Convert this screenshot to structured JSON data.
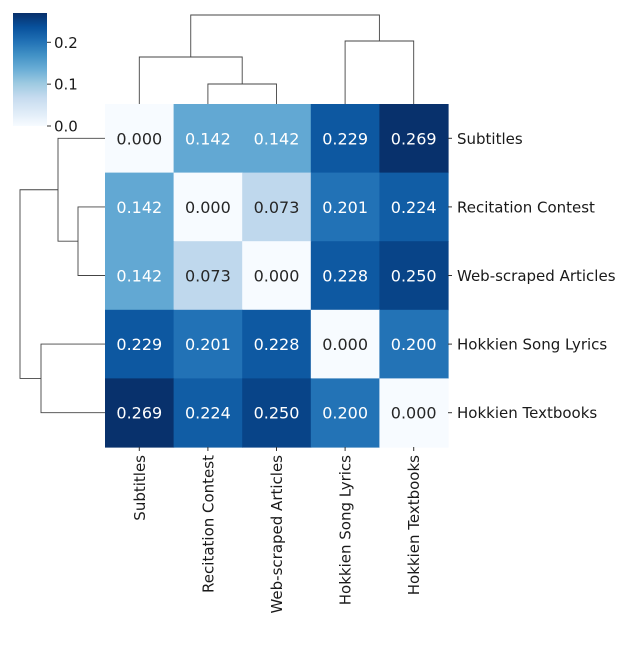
{
  "chart_data": {
    "type": "heatmap",
    "title": "",
    "categories": [
      "Subtitles",
      "Recitation Contest",
      "Web-scraped Articles",
      "Hokkien Song Lyrics",
      "Hokkien Textbooks"
    ],
    "values": [
      [
        0.0,
        0.142,
        0.142,
        0.229,
        0.269
      ],
      [
        0.142,
        0.0,
        0.073,
        0.201,
        0.224
      ],
      [
        0.142,
        0.073,
        0.0,
        0.228,
        0.25
      ],
      [
        0.229,
        0.201,
        0.228,
        0.0,
        0.2
      ],
      [
        0.269,
        0.224,
        0.25,
        0.2,
        0.0
      ]
    ],
    "cell_labels": [
      [
        "0.000",
        "0.142",
        "0.142",
        "0.229",
        "0.269"
      ],
      [
        "0.142",
        "0.000",
        "0.073",
        "0.201",
        "0.224"
      ],
      [
        "0.142",
        "0.073",
        "0.000",
        "0.228",
        "0.250"
      ],
      [
        "0.229",
        "0.201",
        "0.228",
        "0.000",
        "0.200"
      ],
      [
        "0.269",
        "0.224",
        "0.250",
        "0.200",
        "0.000"
      ]
    ],
    "colormap": "Blues",
    "colors": {
      "low": "#f7fbff",
      "mid": "#6baed6",
      "high": "#08306b"
    },
    "colorbar": {
      "range": [
        0,
        0.27
      ],
      "ticks": [
        0.0,
        0.1,
        0.2
      ],
      "tick_labels": [
        "0.0",
        "0.1",
        "0.2"
      ],
      "placement": "top-left"
    },
    "dendrogram": {
      "clustered": true,
      "placement": "top-and-left"
    }
  }
}
